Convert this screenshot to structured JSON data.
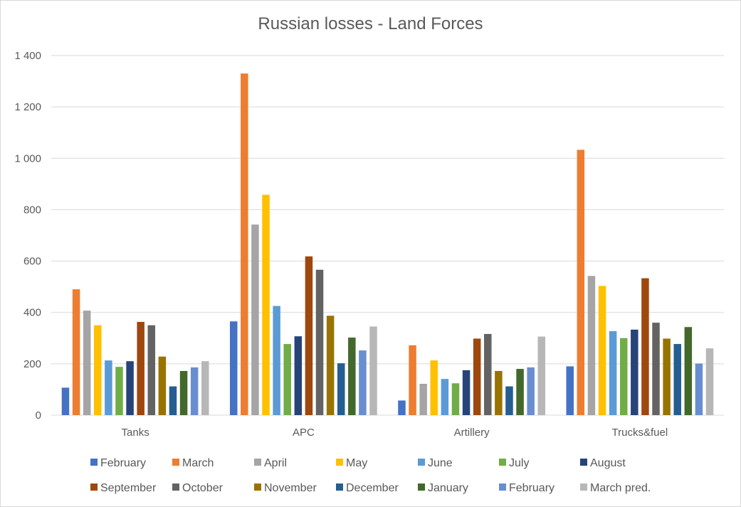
{
  "chart_data": {
    "type": "bar",
    "title": "Russian losses - Land Forces",
    "xlabel": "",
    "ylabel": "",
    "ylim": [
      0,
      1400
    ],
    "yticks": [
      0,
      200,
      400,
      600,
      800,
      1000,
      1200,
      1400
    ],
    "ytick_labels": [
      "0",
      "200",
      "400",
      "600",
      "800",
      "1 000",
      "1 200",
      "1 400"
    ],
    "grid": true,
    "legend_position": "bottom",
    "categories": [
      "Tanks",
      "APC",
      "Artillery",
      "Trucks&fuel"
    ],
    "series": [
      {
        "name": "February",
        "color": "#4472C4",
        "values": [
          107,
          365,
          57,
          190
        ]
      },
      {
        "name": "March",
        "color": "#ED7D31",
        "values": [
          490,
          1330,
          272,
          1033
        ]
      },
      {
        "name": "April",
        "color": "#A5A5A5",
        "values": [
          407,
          742,
          122,
          542
        ]
      },
      {
        "name": "May",
        "color": "#FFC000",
        "values": [
          350,
          858,
          213,
          503
        ]
      },
      {
        "name": "June",
        "color": "#5B9BD5",
        "values": [
          213,
          425,
          141,
          327
        ]
      },
      {
        "name": "July",
        "color": "#70AD47",
        "values": [
          188,
          277,
          124,
          300
        ]
      },
      {
        "name": "August",
        "color": "#264478",
        "values": [
          210,
          307,
          175,
          333
        ]
      },
      {
        "name": "September",
        "color": "#9E480E",
        "values": [
          363,
          618,
          298,
          533
        ]
      },
      {
        "name": "October",
        "color": "#636363",
        "values": [
          350,
          566,
          316,
          360
        ]
      },
      {
        "name": "November",
        "color": "#997300",
        "values": [
          228,
          387,
          172,
          298
        ]
      },
      {
        "name": "December",
        "color": "#255E91",
        "values": [
          112,
          202,
          112,
          277
        ]
      },
      {
        "name": "January",
        "color": "#43682B",
        "values": [
          172,
          302,
          180,
          343
        ]
      },
      {
        "name": "February",
        "color": "#698ED0",
        "values": [
          186,
          252,
          186,
          201
        ]
      },
      {
        "name": "March pred.",
        "color": "#B7B7B7",
        "values": [
          210,
          345,
          306,
          260
        ]
      }
    ]
  }
}
